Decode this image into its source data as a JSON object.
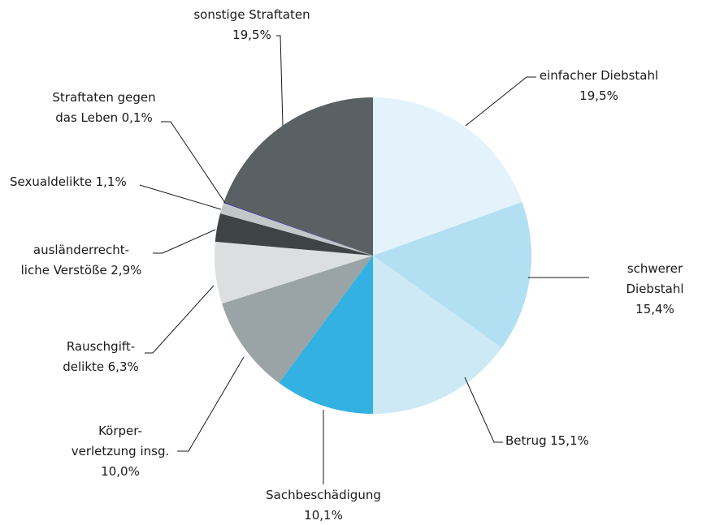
{
  "chart_data": {
    "type": "pie",
    "categories": [
      "einfacher Diebstahl",
      "schwerer Diebstahl",
      "Betrug",
      "Sachbeschädigung",
      "Körper-\nverletzung insg.",
      "Rauschgift-\ndelikte",
      "ausländerrecht-\nliche Verstöße",
      "Sexualdelikte",
      "Straftaten gegen\ndas Leben",
      "sonstige Straftaten"
    ],
    "values": [
      19.5,
      15.4,
      15.1,
      10.1,
      10.0,
      6.3,
      2.9,
      1.1,
      0.1,
      19.5
    ],
    "value_labels": [
      "19,5%",
      "15,4%",
      "15,1%",
      "10,1%",
      "10,0%",
      "6,3%",
      "2,9%",
      "1,1%",
      "0,1%",
      "19,5%"
    ],
    "colors": [
      "#e3f2fb",
      "#b3dff2",
      "#cde9f6",
      "#33b1e2",
      "#9aa3a5",
      "#dcdfe0",
      "#3e4446",
      "#c2c7c9",
      "#2d2c8c",
      "#5a6164"
    ]
  }
}
